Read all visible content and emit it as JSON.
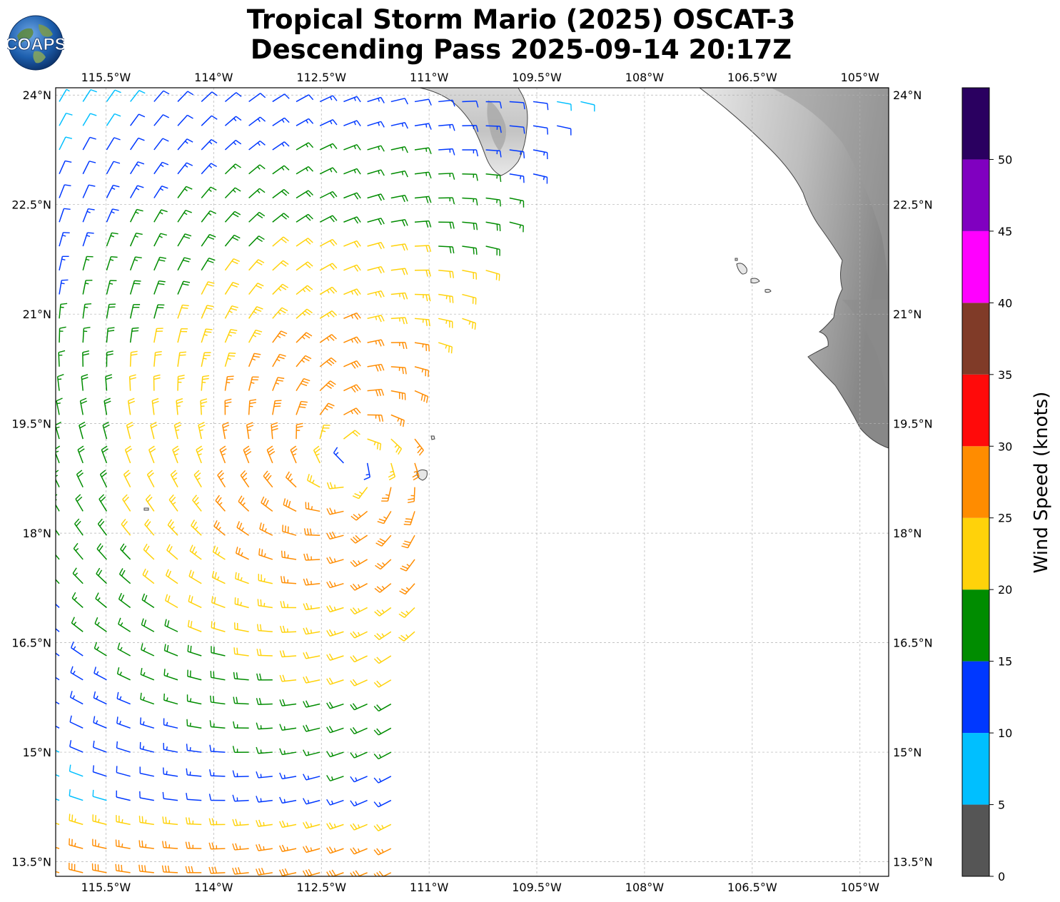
{
  "header": {
    "title_line1": "Tropical Storm Mario (2025) OSCAT-3",
    "title_line2": "Descending Pass 2025-09-14 20:17Z",
    "logo_text": "COAPS"
  },
  "map": {
    "lon_range": [
      -116.2,
      -104.6
    ],
    "lat_range": [
      13.3,
      24.1
    ],
    "lon_ticks": [
      {
        "value": -115.5,
        "label": "115.5°W"
      },
      {
        "value": -114.0,
        "label": "114°W"
      },
      {
        "value": -112.5,
        "label": "112.5°W"
      },
      {
        "value": -111.0,
        "label": "111°W"
      },
      {
        "value": -109.5,
        "label": "109.5°W"
      },
      {
        "value": -108.0,
        "label": "108°W"
      },
      {
        "value": -106.5,
        "label": "106.5°W"
      },
      {
        "value": -105.0,
        "label": "105°W"
      }
    ],
    "lat_ticks": [
      {
        "value": 24.0,
        "label": "24°N"
      },
      {
        "value": 22.5,
        "label": "22.5°N"
      },
      {
        "value": 21.0,
        "label": "21°N"
      },
      {
        "value": 19.5,
        "label": "19.5°N"
      },
      {
        "value": 18.0,
        "label": "18°N"
      },
      {
        "value": 16.5,
        "label": "16.5°N"
      },
      {
        "value": 15.0,
        "label": "15°N"
      },
      {
        "value": 13.5,
        "label": "13.5°N"
      }
    ],
    "gridlines": true,
    "storm_center": {
      "lon": -112.1,
      "lat": 19.0
    }
  },
  "colorbar": {
    "label": "Wind Speed (knots)",
    "ticks": [
      "0",
      "5",
      "10",
      "15",
      "20",
      "25",
      "30",
      "35",
      "40",
      "45",
      "50"
    ],
    "bins": [
      {
        "min": 0,
        "max": 5,
        "color": "#555555"
      },
      {
        "min": 5,
        "max": 10,
        "color": "#00bfff"
      },
      {
        "min": 10,
        "max": 15,
        "color": "#0038ff"
      },
      {
        "min": 15,
        "max": 20,
        "color": "#008c00"
      },
      {
        "min": 20,
        "max": 25,
        "color": "#ffd20a"
      },
      {
        "min": 25,
        "max": 30,
        "color": "#ff8c00"
      },
      {
        "min": 30,
        "max": 35,
        "color": "#ff0a0a"
      },
      {
        "min": 35,
        "max": 40,
        "color": "#803b28"
      },
      {
        "min": 40,
        "max": 45,
        "color": "#ff00ff"
      },
      {
        "min": 45,
        "max": 50,
        "color": "#8000c0"
      },
      {
        "min": 50,
        "max": 55,
        "color": "#2a0060"
      }
    ]
  },
  "colors": {
    "coastline": "#444444",
    "grid": "#b0b0b0",
    "terrain_light": "#f2f2f2",
    "terrain_dark": "#808080"
  }
}
